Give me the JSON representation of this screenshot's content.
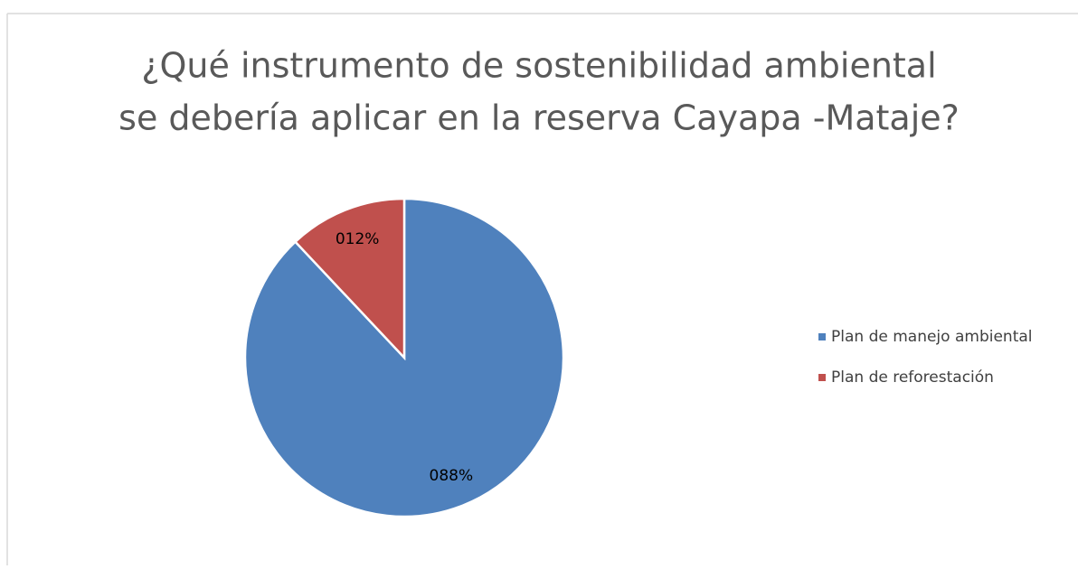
{
  "chart_data": {
    "type": "pie",
    "title": [
      "¿Qué instrumento de sostenibilidad ambiental",
      "se debería aplicar en la reserva Cayapa -Mataje?"
    ],
    "categories": [
      "Plan de manejo ambiental",
      "Plan de reforestación"
    ],
    "values": [
      88,
      12
    ],
    "value_labels": [
      "088%",
      "012%"
    ],
    "colors": [
      "#4f81bd",
      "#c0504d"
    ],
    "legend": "right"
  }
}
